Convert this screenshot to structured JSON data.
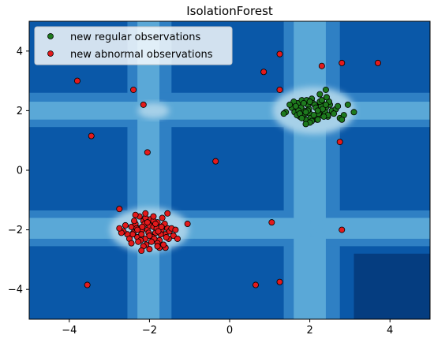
{
  "chart_data": {
    "type": "scatter",
    "title": "IsolationForest",
    "xlabel": "",
    "ylabel": "",
    "xlim": [
      -5,
      5
    ],
    "ylim": [
      -5,
      5
    ],
    "x_ticks": [
      -4,
      -2,
      0,
      2,
      4
    ],
    "y_ticks": [
      -4,
      -2,
      0,
      2,
      4
    ],
    "grid": false,
    "legend_position": "top-left",
    "background": "decision-function contour (Blues colormap)",
    "colors": {
      "regular": "#1e7a1e",
      "abnormal": "#e31a1c",
      "marker_edge": "#000000",
      "contour_levels": [
        "#053d80",
        "#0a58a8",
        "#2f80c4",
        "#5aa8d7",
        "#a6d0e8"
      ]
    },
    "series": [
      {
        "name": "new regular observations",
        "color": "#1e7a1e",
        "x": [
          1.55,
          1.62,
          1.7,
          1.75,
          1.8,
          1.85,
          1.9,
          1.95,
          2.0,
          2.05,
          2.1,
          2.15,
          2.2,
          2.25,
          2.3,
          2.35,
          2.4,
          2.45,
          2.5,
          2.55,
          1.6,
          1.68,
          1.78,
          1.88,
          1.98,
          2.08,
          2.18,
          2.28,
          2.38,
          2.48,
          1.72,
          1.82,
          1.92,
          2.02,
          2.12,
          2.22,
          2.32,
          2.42,
          1.65,
          1.85,
          2.05,
          2.25,
          2.45,
          1.75,
          1.95,
          2.15,
          2.35,
          1.8,
          2.0,
          2.2,
          2.4,
          1.9,
          2.1,
          2.3,
          2.0,
          2.2,
          1.4,
          1.5,
          2.65,
          2.75,
          2.85,
          2.95,
          3.1,
          2.25,
          2.4,
          1.35,
          2.6,
          2.7,
          2.8,
          1.9
        ],
        "y": [
          2.1,
          1.95,
          2.25,
          1.8,
          2.35,
          2.0,
          1.7,
          2.2,
          1.9,
          2.4,
          1.75,
          2.15,
          2.05,
          1.85,
          2.3,
          1.95,
          2.1,
          1.8,
          2.2,
          2.0,
          2.3,
          1.85,
          2.1,
          1.9,
          2.05,
          2.25,
          1.7,
          2.15,
          1.95,
          2.3,
          2.0,
          1.8,
          2.35,
          1.75,
          2.2,
          1.9,
          2.05,
          2.45,
          2.15,
          2.25,
          1.65,
          2.3,
          1.85,
          1.9,
          2.0,
          2.1,
          1.8,
          1.75,
          2.3,
          2.0,
          2.2,
          1.95,
          1.85,
          2.35,
          1.6,
          1.7,
          1.95,
          2.2,
          2.05,
          1.75,
          1.85,
          2.2,
          1.95,
          2.55,
          2.7,
          1.9,
          1.9,
          2.15,
          1.7,
          1.55
        ]
      },
      {
        "name": "new abnormal observations",
        "color": "#e31a1c",
        "x": [
          -2.45,
          -2.4,
          -2.35,
          -2.3,
          -2.25,
          -2.2,
          -2.15,
          -2.1,
          -2.05,
          -2.0,
          -1.95,
          -1.9,
          -1.85,
          -1.8,
          -1.75,
          -1.7,
          -1.65,
          -1.6,
          -1.55,
          -1.5,
          -2.42,
          -2.32,
          -2.22,
          -2.12,
          -2.02,
          -1.92,
          -1.82,
          -1.72,
          -1.62,
          -1.52,
          -2.38,
          -2.28,
          -2.18,
          -2.08,
          -1.98,
          -1.88,
          -1.78,
          -1.68,
          -1.58,
          -2.3,
          -2.2,
          -2.1,
          -2.0,
          -1.9,
          -1.8,
          -1.7,
          -2.25,
          -2.15,
          -2.05,
          -1.95,
          -1.85,
          -1.75,
          -2.6,
          -2.55,
          -2.65,
          -2.5,
          -1.45,
          -1.4,
          -1.35,
          -1.3,
          -2.7,
          -2.75,
          -2.2,
          -2.0,
          -1.8,
          -1.6,
          -2.35,
          -2.1,
          -1.9,
          -1.65,
          -2.45,
          -1.55
        ],
        "y": [
          -1.9,
          -2.1,
          -1.8,
          -2.25,
          -1.95,
          -2.05,
          -1.7,
          -2.3,
          -2.0,
          -1.85,
          -2.2,
          -1.9,
          -2.1,
          -1.75,
          -2.35,
          -2.0,
          -1.85,
          -2.15,
          -1.95,
          -2.05,
          -2.15,
          -1.95,
          -2.35,
          -1.8,
          -2.1,
          -2.25,
          -1.95,
          -2.15,
          -1.8,
          -2.3,
          -1.7,
          -2.4,
          -1.9,
          -2.5,
          -1.65,
          -2.3,
          -2.05,
          -1.6,
          -2.25,
          -2.0,
          -2.15,
          -1.6,
          -2.2,
          -1.7,
          -2.45,
          -1.9,
          -1.55,
          -2.55,
          -1.75,
          -2.4,
          -1.8,
          -2.6,
          -1.85,
          -2.15,
          -2.05,
          -2.3,
          -1.95,
          -2.2,
          -2.0,
          -2.3,
          -2.1,
          -1.95,
          -2.7,
          -2.65,
          -2.55,
          -2.6,
          -1.5,
          -1.45,
          -1.55,
          -2.5,
          -2.45,
          -1.45
        ]
      }
    ],
    "outliers": {
      "name": "new abnormal observations",
      "x": [
        -3.8,
        -3.45,
        -3.55,
        -2.4,
        -2.15,
        -2.05,
        -0.35,
        -2.75,
        0.85,
        1.25,
        1.25,
        2.3,
        2.8,
        3.7,
        2.75,
        1.05,
        2.8,
        0.65,
        1.25,
        -1.05
      ],
      "y": [
        3.0,
        1.15,
        -3.85,
        2.7,
        2.2,
        0.6,
        0.3,
        -1.3,
        3.3,
        3.9,
        2.7,
        3.5,
        3.6,
        3.6,
        0.95,
        -1.75,
        -2.0,
        -3.85,
        -3.75,
        -1.8
      ]
    }
  }
}
